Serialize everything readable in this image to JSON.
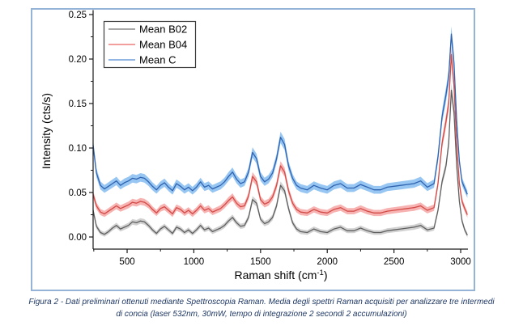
{
  "page": {
    "background": "#ffffff",
    "frame_border_color": "#95b3d7"
  },
  "caption": {
    "line1": "Figura 2 - Dati preliminari ottenuti mediante Spettroscopia Raman. Media degli spettri Raman acquisiti per analizzare tre intermedi",
    "line2": "di concia (laser 532nm, 30mW, tempo di integrazione 2 secondi 2 accumulazioni)",
    "color": "#1f3864"
  },
  "chart_data": {
    "type": "line",
    "title": "",
    "xlabel": "Raman shift (cm⁻¹)",
    "xlabel_parts": {
      "main": "Raman shift (cm",
      "sup": "-1",
      "end": ")"
    },
    "ylabel": "Intensity (cts/s)",
    "xlim": [
      245,
      3055
    ],
    "ylim": [
      -0.014,
      0.255
    ],
    "grid": false,
    "legend_position": "top-left",
    "x_ticks": [
      500,
      1000,
      1500,
      2000,
      2500,
      3000
    ],
    "x_minor_ticks": [
      250,
      750,
      1250,
      1750,
      2250,
      2750
    ],
    "y_ticks": [
      0.0,
      0.05,
      0.1,
      0.15,
      0.2,
      0.25
    ],
    "y_tick_labels": [
      "0.00",
      "0.05",
      "0.10",
      "0.15",
      "0.20",
      "0.25"
    ],
    "axis_color": "#1a1a1a",
    "band_halfwidth_base": 0.0025,
    "band_halfwidth_factor": 0.035,
    "band_halfwidth_max": 0.009,
    "x": [
      245,
      270,
      300,
      330,
      360,
      390,
      420,
      450,
      480,
      510,
      540,
      570,
      600,
      630,
      660,
      690,
      720,
      750,
      780,
      810,
      840,
      870,
      900,
      930,
      960,
      990,
      1020,
      1050,
      1080,
      1110,
      1140,
      1170,
      1200,
      1230,
      1260,
      1290,
      1320,
      1350,
      1380,
      1410,
      1440,
      1470,
      1500,
      1530,
      1560,
      1590,
      1620,
      1650,
      1680,
      1710,
      1740,
      1770,
      1800,
      1850,
      1900,
      1950,
      2000,
      2050,
      2100,
      2150,
      2200,
      2250,
      2300,
      2350,
      2400,
      2450,
      2500,
      2550,
      2600,
      2650,
      2700,
      2750,
      2800,
      2830,
      2860,
      2890,
      2910,
      2930,
      2950,
      2970,
      2990,
      3010,
      3030,
      3050
    ],
    "series": [
      {
        "name": "Mean B02",
        "line_color": "#5f5f5f",
        "band_color": "#c6c6c6",
        "legend_color": "#9b9b9b",
        "values": [
          0.03,
          0.012,
          0.005,
          0.003,
          0.006,
          0.01,
          0.013,
          0.009,
          0.011,
          0.013,
          0.017,
          0.016,
          0.018,
          0.017,
          0.013,
          0.008,
          0.004,
          0.009,
          0.012,
          0.008,
          0.004,
          0.011,
          0.009,
          0.005,
          0.008,
          0.004,
          0.008,
          0.013,
          0.008,
          0.01,
          0.006,
          0.008,
          0.01,
          0.013,
          0.018,
          0.022,
          0.016,
          0.012,
          0.013,
          0.022,
          0.042,
          0.038,
          0.02,
          0.015,
          0.017,
          0.022,
          0.035,
          0.058,
          0.052,
          0.032,
          0.016,
          0.009,
          0.006,
          0.005,
          0.009,
          0.006,
          0.005,
          0.009,
          0.011,
          0.007,
          0.007,
          0.01,
          0.007,
          0.005,
          0.005,
          0.007,
          0.008,
          0.009,
          0.01,
          0.011,
          0.013,
          0.008,
          0.01,
          0.03,
          0.062,
          0.08,
          0.105,
          0.165,
          0.14,
          0.08,
          0.04,
          0.018,
          0.008,
          0.002
        ]
      },
      {
        "name": "Mean B04",
        "line_color": "#d24a47",
        "band_color": "#f5a09e",
        "legend_color": "#f0908e",
        "values": [
          0.048,
          0.035,
          0.028,
          0.026,
          0.029,
          0.032,
          0.035,
          0.032,
          0.034,
          0.036,
          0.039,
          0.038,
          0.04,
          0.039,
          0.036,
          0.031,
          0.027,
          0.032,
          0.034,
          0.03,
          0.026,
          0.033,
          0.031,
          0.027,
          0.03,
          0.026,
          0.03,
          0.035,
          0.03,
          0.032,
          0.028,
          0.03,
          0.032,
          0.036,
          0.041,
          0.045,
          0.038,
          0.034,
          0.035,
          0.046,
          0.068,
          0.062,
          0.042,
          0.037,
          0.039,
          0.045,
          0.058,
          0.08,
          0.073,
          0.052,
          0.038,
          0.031,
          0.028,
          0.027,
          0.031,
          0.028,
          0.027,
          0.031,
          0.033,
          0.029,
          0.029,
          0.032,
          0.029,
          0.027,
          0.027,
          0.029,
          0.03,
          0.031,
          0.032,
          0.033,
          0.035,
          0.03,
          0.033,
          0.06,
          0.105,
          0.13,
          0.15,
          0.205,
          0.17,
          0.105,
          0.06,
          0.04,
          0.032,
          0.025
        ]
      },
      {
        "name": "Mean C",
        "line_color": "#2f63b0",
        "band_color": "#7db8f0",
        "legend_color": "#82abdf",
        "values": [
          0.103,
          0.072,
          0.058,
          0.054,
          0.057,
          0.06,
          0.063,
          0.058,
          0.061,
          0.063,
          0.066,
          0.065,
          0.067,
          0.066,
          0.062,
          0.057,
          0.053,
          0.058,
          0.061,
          0.056,
          0.052,
          0.06,
          0.057,
          0.053,
          0.056,
          0.052,
          0.056,
          0.062,
          0.056,
          0.058,
          0.054,
          0.056,
          0.058,
          0.062,
          0.068,
          0.073,
          0.065,
          0.06,
          0.062,
          0.073,
          0.095,
          0.088,
          0.068,
          0.062,
          0.065,
          0.072,
          0.088,
          0.112,
          0.104,
          0.08,
          0.066,
          0.058,
          0.055,
          0.053,
          0.058,
          0.055,
          0.053,
          0.058,
          0.06,
          0.055,
          0.055,
          0.059,
          0.056,
          0.053,
          0.053,
          0.056,
          0.057,
          0.058,
          0.059,
          0.06,
          0.063,
          0.056,
          0.06,
          0.09,
          0.135,
          0.16,
          0.18,
          0.228,
          0.195,
          0.13,
          0.085,
          0.062,
          0.055,
          0.048
        ]
      }
    ]
  }
}
